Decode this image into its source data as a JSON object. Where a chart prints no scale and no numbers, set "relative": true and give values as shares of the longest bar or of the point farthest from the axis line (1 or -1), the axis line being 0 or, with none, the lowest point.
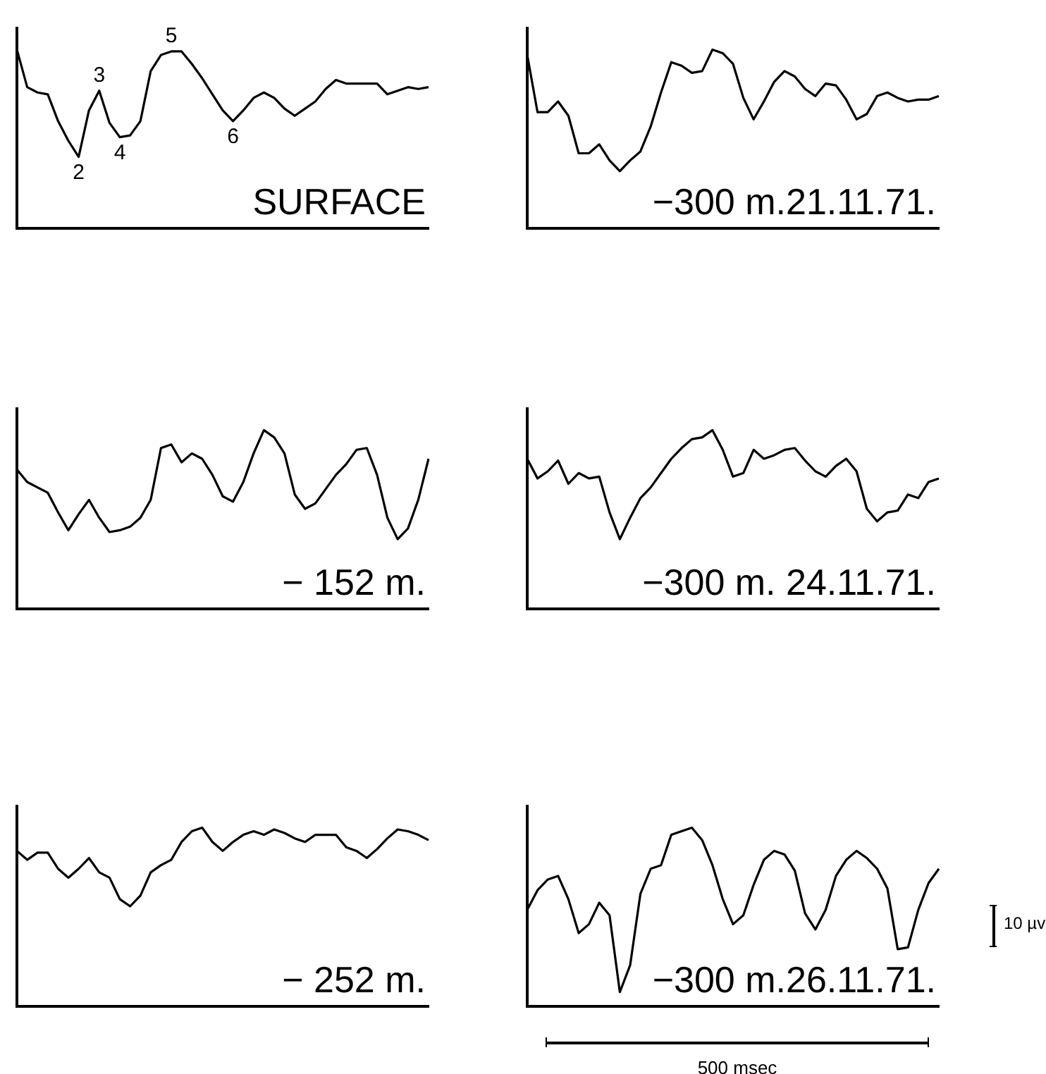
{
  "chart_data": [
    {
      "type": "line",
      "title": "SURFACE",
      "relative": true,
      "tick_labels": false,
      "color": "#000000",
      "categories": [
        null,
        null,
        null,
        null,
        null,
        null,
        null,
        null,
        null,
        null,
        null,
        null,
        null,
        null,
        null,
        null,
        null,
        null,
        null,
        null,
        null,
        null,
        null,
        null,
        null,
        null,
        null,
        null,
        null,
        null,
        null,
        null,
        null,
        null,
        null,
        null,
        null,
        null,
        null,
        null,
        null
      ],
      "values": [
        1.0,
        0.79,
        0.76,
        0.75,
        0.6,
        0.49,
        0.4,
        0.66,
        0.77,
        0.59,
        0.51,
        0.52,
        0.6,
        0.88,
        0.97,
        0.99,
        0.99,
        0.92,
        0.84,
        0.75,
        0.66,
        0.6,
        0.66,
        0.73,
        0.76,
        0.73,
        0.67,
        0.63,
        0.67,
        0.71,
        0.78,
        0.83,
        0.81,
        0.81,
        0.81,
        0.81,
        0.75,
        0.77,
        0.79,
        0.78,
        0.79
      ],
      "annotations": [
        {
          "text": "2",
          "y": 0.4
        },
        {
          "text": "3",
          "y": 0.77
        },
        {
          "text": "4",
          "y": 0.51
        },
        {
          "text": "5",
          "y": 0.99
        },
        {
          "text": "6",
          "y": 0.6
        }
      ]
    },
    {
      "type": "line",
      "title": "−300 m.21.11.71.",
      "relative": true,
      "tick_labels": false,
      "color": "#000000",
      "categories": [
        null,
        null,
        null,
        null,
        null,
        null,
        null,
        null,
        null,
        null,
        null,
        null,
        null,
        null,
        null,
        null,
        null,
        null,
        null,
        null,
        null,
        null,
        null,
        null,
        null,
        null,
        null,
        null,
        null,
        null,
        null,
        null,
        null,
        null,
        null,
        null,
        null,
        null,
        null,
        null,
        null
      ],
      "values": [
        0.97,
        0.65,
        0.65,
        0.71,
        0.63,
        0.42,
        0.42,
        0.47,
        0.38,
        0.32,
        0.38,
        0.43,
        0.57,
        0.76,
        0.93,
        0.91,
        0.87,
        0.88,
        1.0,
        0.98,
        0.92,
        0.73,
        0.61,
        0.71,
        0.82,
        0.88,
        0.85,
        0.78,
        0.74,
        0.81,
        0.8,
        0.72,
        0.61,
        0.64,
        0.74,
        0.76,
        0.73,
        0.71,
        0.72,
        0.72,
        0.74
      ]
    },
    {
      "type": "line",
      "title": "− 152 m.",
      "relative": true,
      "tick_labels": false,
      "color": "#000000",
      "categories": [
        null,
        null,
        null,
        null,
        null,
        null,
        null,
        null,
        null,
        null,
        null,
        null,
        null,
        null,
        null,
        null,
        null,
        null,
        null,
        null,
        null,
        null,
        null,
        null,
        null,
        null,
        null,
        null,
        null,
        null,
        null,
        null,
        null,
        null,
        null,
        null,
        null,
        null,
        null,
        null,
        null
      ],
      "values": [
        0.78,
        0.71,
        0.68,
        0.65,
        0.54,
        0.44,
        0.53,
        0.61,
        0.51,
        0.43,
        0.44,
        0.46,
        0.51,
        0.61,
        0.9,
        0.92,
        0.82,
        0.87,
        0.84,
        0.75,
        0.63,
        0.6,
        0.71,
        0.87,
        1.0,
        0.96,
        0.87,
        0.64,
        0.56,
        0.59,
        0.67,
        0.75,
        0.81,
        0.89,
        0.9,
        0.75,
        0.51,
        0.39,
        0.45,
        0.61,
        0.84
      ]
    },
    {
      "type": "line",
      "title": "−300 m. 24.11.71.",
      "relative": true,
      "tick_labels": false,
      "color": "#000000",
      "categories": [
        null,
        null,
        null,
        null,
        null,
        null,
        null,
        null,
        null,
        null,
        null,
        null,
        null,
        null,
        null,
        null,
        null,
        null,
        null,
        null,
        null,
        null,
        null,
        null,
        null,
        null,
        null,
        null,
        null,
        null,
        null,
        null,
        null,
        null,
        null,
        null,
        null,
        null,
        null,
        null,
        null
      ],
      "values": [
        0.84,
        0.73,
        0.77,
        0.83,
        0.7,
        0.76,
        0.73,
        0.74,
        0.54,
        0.39,
        0.51,
        0.62,
        0.68,
        0.76,
        0.84,
        0.9,
        0.95,
        0.96,
        1.0,
        0.89,
        0.74,
        0.76,
        0.89,
        0.84,
        0.86,
        0.89,
        0.9,
        0.83,
        0.77,
        0.74,
        0.8,
        0.84,
        0.77,
        0.56,
        0.49,
        0.54,
        0.55,
        0.64,
        0.62,
        0.71,
        0.73
      ]
    },
    {
      "type": "line",
      "title": "− 252 m.",
      "relative": true,
      "tick_labels": false,
      "color": "#000000",
      "categories": [
        null,
        null,
        null,
        null,
        null,
        null,
        null,
        null,
        null,
        null,
        null,
        null,
        null,
        null,
        null,
        null,
        null,
        null,
        null,
        null,
        null,
        null,
        null,
        null,
        null,
        null,
        null,
        null,
        null,
        null,
        null,
        null,
        null,
        null,
        null,
        null,
        null,
        null,
        null,
        null,
        null
      ],
      "values": [
        0.87,
        0.82,
        0.86,
        0.86,
        0.77,
        0.72,
        0.77,
        0.83,
        0.75,
        0.72,
        0.6,
        0.56,
        0.62,
        0.75,
        0.79,
        0.82,
        0.92,
        0.98,
        1.0,
        0.92,
        0.87,
        0.92,
        0.96,
        0.98,
        0.96,
        0.99,
        0.97,
        0.94,
        0.92,
        0.96,
        0.96,
        0.96,
        0.89,
        0.87,
        0.83,
        0.88,
        0.94,
        0.99,
        0.98,
        0.96,
        0.93
      ]
    },
    {
      "type": "line",
      "title": "−300 m.26.11.71.",
      "relative": true,
      "tick_labels": false,
      "color": "#000000",
      "categories": [
        null,
        null,
        null,
        null,
        null,
        null,
        null,
        null,
        null,
        null,
        null,
        null,
        null,
        null,
        null,
        null,
        null,
        null,
        null,
        null,
        null,
        null,
        null,
        null,
        null,
        null,
        null,
        null,
        null,
        null,
        null,
        null,
        null,
        null,
        null,
        null,
        null,
        null,
        null,
        null,
        null
      ],
      "values": [
        0.54,
        0.65,
        0.71,
        0.73,
        0.6,
        0.41,
        0.46,
        0.58,
        0.51,
        0.08,
        0.23,
        0.63,
        0.77,
        0.79,
        0.96,
        0.98,
        1.0,
        0.93,
        0.79,
        0.6,
        0.46,
        0.51,
        0.68,
        0.82,
        0.87,
        0.85,
        0.76,
        0.52,
        0.43,
        0.54,
        0.73,
        0.82,
        0.87,
        0.83,
        0.77,
        0.66,
        0.32,
        0.33,
        0.54,
        0.69,
        0.77
      ]
    },
    {
      "type": "other",
      "annotations": [
        "10 µv",
        "500 msec"
      ]
    }
  ]
}
